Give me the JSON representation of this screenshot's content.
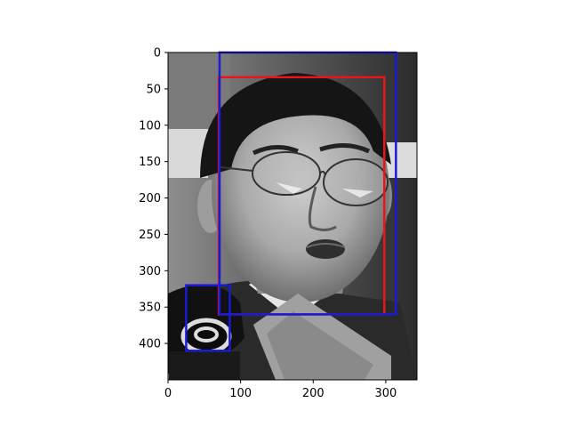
{
  "colors": {
    "background": "#ffffff",
    "axes_frame": "#000000",
    "red_box": "#e8151b",
    "blue_box": "#1a1ad6"
  },
  "chart_data": {
    "type": "image-with-bounding-boxes",
    "title": "",
    "xlabel": "",
    "ylabel": "",
    "image_semantics": "grayscale photo: man with glasses speaking into microphones",
    "xlim": [
      0,
      343
    ],
    "ylim": [
      450,
      0
    ],
    "x_ticks": [
      0,
      100,
      200,
      300
    ],
    "y_ticks": [
      0,
      50,
      100,
      150,
      200,
      250,
      300,
      350,
      400
    ],
    "x_tick_labels": [
      "0",
      "100",
      "200",
      "300"
    ],
    "y_tick_labels": [
      "0",
      "50",
      "100",
      "150",
      "200",
      "250",
      "300",
      "350",
      "400"
    ],
    "boxes": [
      {
        "name": "red-box-face",
        "color": "#e8151b",
        "x0": 70,
        "y0": 34,
        "x1": 298,
        "y1": 360
      },
      {
        "name": "blue-box-face",
        "color": "#1a1ad6",
        "x0": 71,
        "y0": 0,
        "x1": 314,
        "y1": 360
      },
      {
        "name": "blue-box-microphone",
        "color": "#1a1ad6",
        "x0": 25,
        "y0": 320,
        "x1": 85,
        "y1": 410
      }
    ]
  }
}
